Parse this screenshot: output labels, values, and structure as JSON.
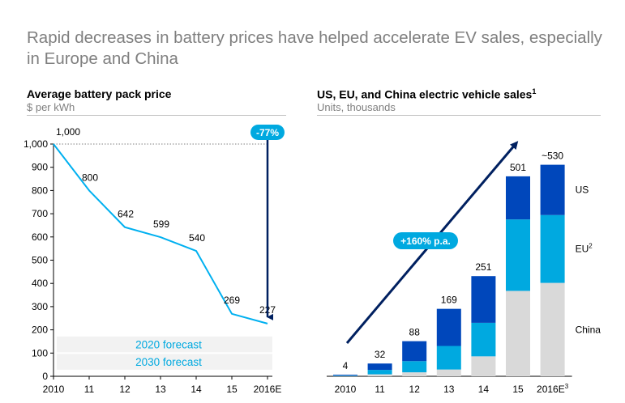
{
  "page": {
    "title": "Rapid decreases in battery prices have helped accelerate EV sales, especially in Europe and China"
  },
  "colors": {
    "price_line": "#00b0f0",
    "dark_navy": "#002060",
    "us": "#0047bb",
    "eu": "#00a9e0",
    "china": "#d9d9d9",
    "forecast_band": "#f2f2f2",
    "forecast_text": "#00a9e0"
  },
  "chart_data": [
    {
      "type": "line",
      "title": "Average battery pack price",
      "subtitle": "$ per kWh",
      "x": [
        "2010",
        "11",
        "12",
        "13",
        "14",
        "15",
        "2016E"
      ],
      "series": [
        {
          "name": "",
          "values": [
            1000,
            800,
            642,
            599,
            540,
            269,
            227
          ]
        }
      ],
      "data_labels": [
        "1,000",
        "800",
        "642",
        "599",
        "540",
        "269",
        "227"
      ],
      "ylim": [
        0,
        1000
      ],
      "yticks": [
        "0",
        "100",
        "200",
        "300",
        "400",
        "500",
        "600",
        "700",
        "800",
        "900",
        "1,000"
      ],
      "grid": false,
      "annotations": {
        "change": "-77%",
        "forecasts": [
          {
            "label": "2020 forecast",
            "y_range": [
              100,
              175
            ]
          },
          {
            "label": "2030 forecast",
            "y_range": [
              25,
              100
            ]
          }
        ]
      }
    },
    {
      "type": "bar",
      "stacked": true,
      "title": "US, EU, and China electric vehicle sales",
      "title_footnote": "1",
      "subtitle": "Units, thousands",
      "categories": [
        "2010",
        "11",
        "12",
        "13",
        "14",
        "15",
        "2016E"
      ],
      "category_footnotes": [
        "",
        "",
        "",
        "",
        "",
        "",
        "3"
      ],
      "totals": [
        4,
        32,
        88,
        169,
        251,
        501,
        530
      ],
      "total_labels": [
        "4",
        "32",
        "88",
        "169",
        "251",
        "501",
        "~530"
      ],
      "series": [
        {
          "name": "China",
          "footnote": "",
          "values": [
            1,
            5,
            10,
            17,
            50,
            214,
            234
          ]
        },
        {
          "name": "EU",
          "footnote": "2",
          "values": [
            1,
            11,
            28,
            59,
            84,
            179,
            170
          ]
        },
        {
          "name": "US",
          "footnote": "",
          "values": [
            2,
            16,
            50,
            93,
            117,
            108,
            126
          ]
        }
      ],
      "ylim": [
        0,
        590
      ],
      "legend_position": "right, beside last bar",
      "grid": false,
      "annotations": {
        "growth": "+160% p.a."
      }
    }
  ]
}
